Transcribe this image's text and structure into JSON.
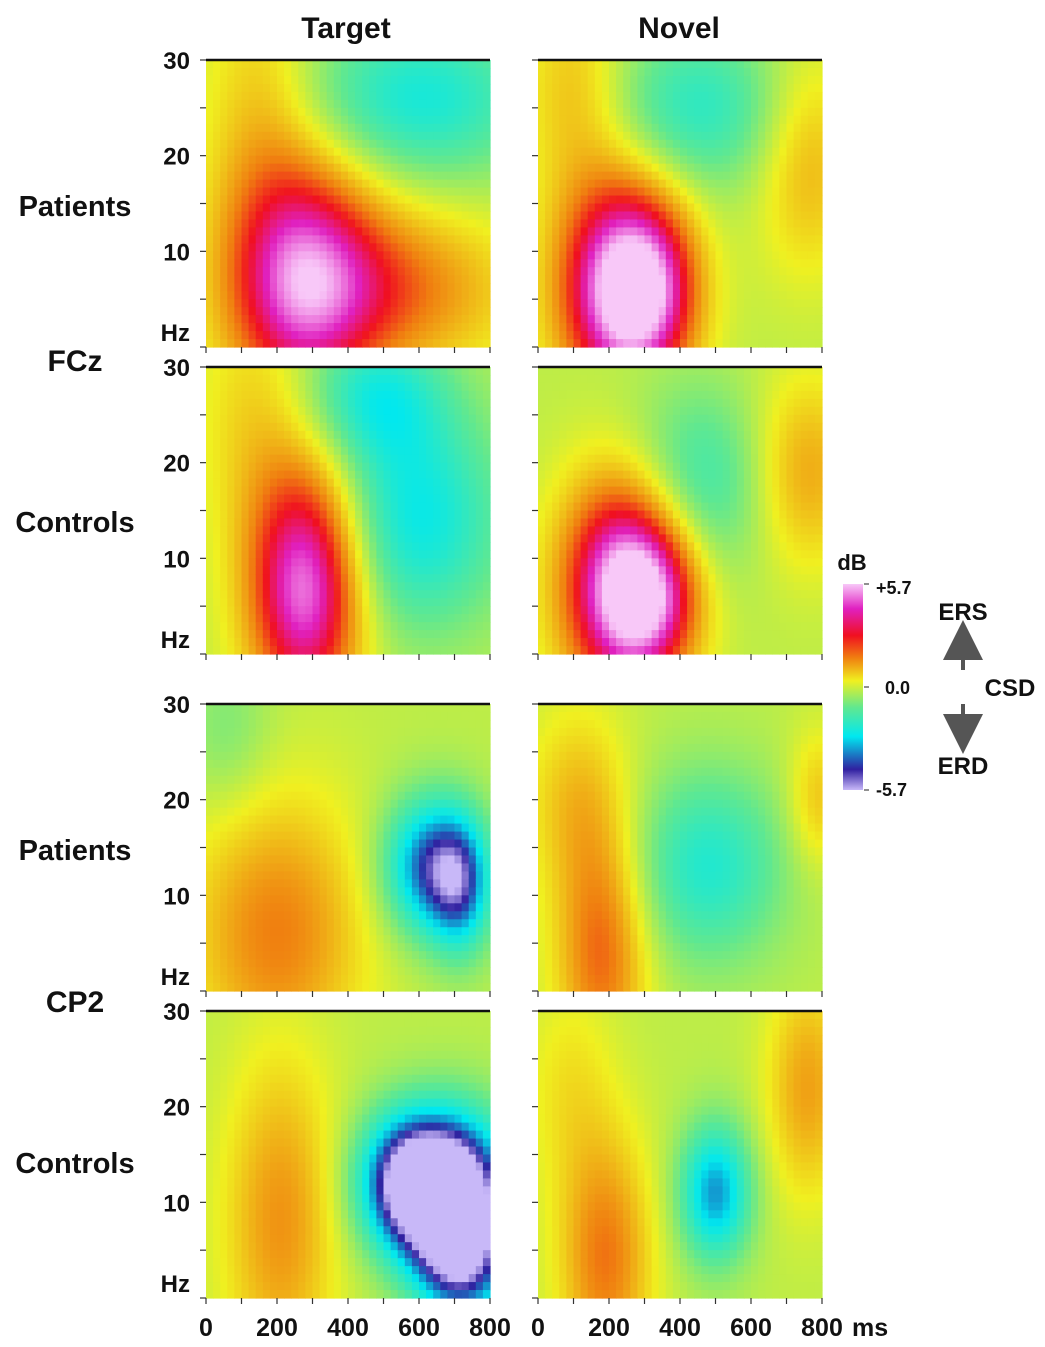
{
  "chart_data": {
    "type": "heatmap",
    "columns": [
      "Target",
      "Novel"
    ],
    "electrodes": [
      "FCz",
      "CP2"
    ],
    "groups": [
      "Patients",
      "Controls"
    ],
    "xlabel_unit": "ms",
    "ylabel_unit": "Hz",
    "x_ticks": [
      "0",
      "200",
      "400",
      "600",
      "800"
    ],
    "y_ticks": [
      "30",
      "20",
      "10"
    ],
    "xlim": [
      0,
      800
    ],
    "ylim": [
      0,
      30
    ],
    "colorbar": {
      "label": "dB",
      "max_label": "+5.7",
      "mid_label": "0.0",
      "min_label": "-5.7",
      "range": [
        -5.7,
        5.7
      ],
      "colors": [
        "#c8b8f8",
        "#3020a0",
        "#00e8f0",
        "#60e890",
        "#f0f020",
        "#f08010",
        "#f01020",
        "#e020c0",
        "#f8c8f8"
      ]
    },
    "annotation": {
      "up": "ERS",
      "down": "ERD",
      "measure": "CSD"
    },
    "panels": [
      {
        "electrode": "FCz",
        "group": "Patients",
        "condition": "Target",
        "blobs": [
          {
            "t": 270,
            "f": 7,
            "st": 150,
            "sf": 9,
            "v": 5.0
          },
          {
            "t": 550,
            "f": 6,
            "st": 220,
            "sf": 6,
            "v": 2.2
          },
          {
            "t": 150,
            "f": 26,
            "st": 110,
            "sf": 10,
            "v": 1.2
          },
          {
            "t": 600,
            "f": 26,
            "st": 230,
            "sf": 6,
            "v": -2.4
          }
        ]
      },
      {
        "electrode": "FCz",
        "group": "Patients",
        "condition": "Novel",
        "blobs": [
          {
            "t": 230,
            "f": 6,
            "st": 120,
            "sf": 8,
            "v": 6.0
          },
          {
            "t": 330,
            "f": 6,
            "st": 90,
            "sf": 6,
            "v": 2.5
          },
          {
            "t": 100,
            "f": 27,
            "st": 100,
            "sf": 8,
            "v": 1.3
          },
          {
            "t": 450,
            "f": 25,
            "st": 170,
            "sf": 6,
            "v": -2.0
          },
          {
            "t": 760,
            "f": 19,
            "st": 100,
            "sf": 8,
            "v": 1.5
          }
        ]
      },
      {
        "electrode": "FCz",
        "group": "Controls",
        "condition": "Target",
        "blobs": [
          {
            "t": 280,
            "f": 7,
            "st": 110,
            "sf": 9,
            "v": 5.5
          },
          {
            "t": 600,
            "f": 14,
            "st": 170,
            "sf": 8,
            "v": -2.6
          },
          {
            "t": 130,
            "f": 25,
            "st": 110,
            "sf": 10,
            "v": 1.0
          },
          {
            "t": 480,
            "f": 27,
            "st": 140,
            "sf": 5,
            "v": -2.2
          }
        ]
      },
      {
        "electrode": "FCz",
        "group": "Controls",
        "condition": "Novel",
        "blobs": [
          {
            "t": 240,
            "f": 7,
            "st": 120,
            "sf": 8,
            "v": 6.0
          },
          {
            "t": 330,
            "f": 6,
            "st": 90,
            "sf": 5,
            "v": 2.5
          },
          {
            "t": 750,
            "f": 19,
            "st": 110,
            "sf": 7,
            "v": 1.8
          },
          {
            "t": 450,
            "f": 18,
            "st": 150,
            "sf": 7,
            "v": -1.8
          }
        ]
      },
      {
        "electrode": "CP2",
        "group": "Patients",
        "condition": "Target",
        "blobs": [
          {
            "t": 200,
            "f": 6,
            "st": 170,
            "sf": 10,
            "v": 2.3
          },
          {
            "t": 630,
            "f": 13,
            "st": 90,
            "sf": 5,
            "v": -4.0
          },
          {
            "t": 720,
            "f": 11,
            "st": 60,
            "sf": 5,
            "v": -3.0
          },
          {
            "t": 60,
            "f": 27,
            "st": 90,
            "sf": 6,
            "v": -0.8
          }
        ]
      },
      {
        "electrode": "CP2",
        "group": "Patients",
        "condition": "Novel",
        "blobs": [
          {
            "t": 180,
            "f": 4,
            "st": 90,
            "sf": 9,
            "v": 2.6
          },
          {
            "t": 110,
            "f": 20,
            "st": 100,
            "sf": 7,
            "v": 1.3
          },
          {
            "t": 480,
            "f": 13,
            "st": 150,
            "sf": 7,
            "v": -2.2
          },
          {
            "t": 790,
            "f": 20,
            "st": 60,
            "sf": 5,
            "v": 1.3
          }
        ]
      },
      {
        "electrode": "CP2",
        "group": "Controls",
        "condition": "Target",
        "blobs": [
          {
            "t": 210,
            "f": 8,
            "st": 110,
            "sf": 12,
            "v": 2.0
          },
          {
            "t": 580,
            "f": 12,
            "st": 100,
            "sf": 5,
            "v": -6.2
          },
          {
            "t": 720,
            "f": 10,
            "st": 100,
            "sf": 6,
            "v": -5.8
          },
          {
            "t": 720,
            "f": 3,
            "st": 90,
            "sf": 4,
            "v": -2.8
          }
        ]
      },
      {
        "electrode": "CP2",
        "group": "Controls",
        "condition": "Novel",
        "blobs": [
          {
            "t": 190,
            "f": 4,
            "st": 90,
            "sf": 9,
            "v": 2.4
          },
          {
            "t": 500,
            "f": 11,
            "st": 70,
            "sf": 5,
            "v": -3.5
          },
          {
            "t": 760,
            "f": 22,
            "st": 80,
            "sf": 8,
            "v": 1.8
          },
          {
            "t": 90,
            "f": 22,
            "st": 90,
            "sf": 8,
            "v": 0.8
          }
        ]
      }
    ]
  }
}
